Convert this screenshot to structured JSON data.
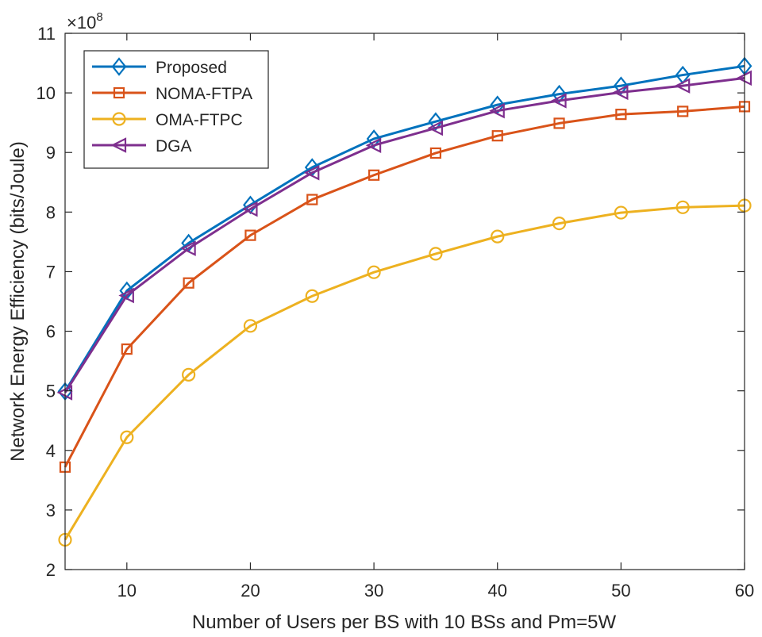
{
  "chart_data": {
    "type": "line",
    "title": "",
    "xlabel": "Number of Users per BS with 10 BSs and Pm=5W",
    "ylabel": "Network Energy Efficiency (bits/Joule)",
    "y_multiplier": "×10",
    "y_multiplier_exp": "8",
    "xlim": [
      5,
      60
    ],
    "ylim": [
      2,
      11
    ],
    "xticks": [
      10,
      20,
      30,
      40,
      50,
      60
    ],
    "yticks": [
      2,
      3,
      4,
      5,
      6,
      7,
      8,
      9,
      10,
      11
    ],
    "grid": false,
    "legend_position": "top-left",
    "x": [
      5,
      10,
      15,
      20,
      25,
      30,
      35,
      40,
      45,
      50,
      55,
      60
    ],
    "series": [
      {
        "name": "Proposed",
        "color": "#0072BD",
        "marker": "diamond",
        "values": [
          4.99,
          6.68,
          7.48,
          8.12,
          8.75,
          9.23,
          9.52,
          9.8,
          9.98,
          10.12,
          10.3,
          10.45
        ]
      },
      {
        "name": "NOMA-FTPA",
        "color": "#D95319",
        "marker": "square",
        "values": [
          3.72,
          5.7,
          6.81,
          7.61,
          8.21,
          8.62,
          8.99,
          9.28,
          9.49,
          9.64,
          9.69,
          9.77
        ]
      },
      {
        "name": "OMA-FTPC",
        "color": "#EDB120",
        "marker": "circle",
        "values": [
          2.5,
          4.22,
          5.27,
          6.09,
          6.59,
          6.99,
          7.3,
          7.59,
          7.81,
          7.99,
          8.08,
          8.11
        ]
      },
      {
        "name": "DGA",
        "color": "#7E2F8E",
        "marker": "triangle-left",
        "values": [
          4.97,
          6.6,
          7.39,
          8.05,
          8.66,
          9.12,
          9.41,
          9.7,
          9.87,
          10.01,
          10.12,
          10.25
        ]
      }
    ]
  }
}
